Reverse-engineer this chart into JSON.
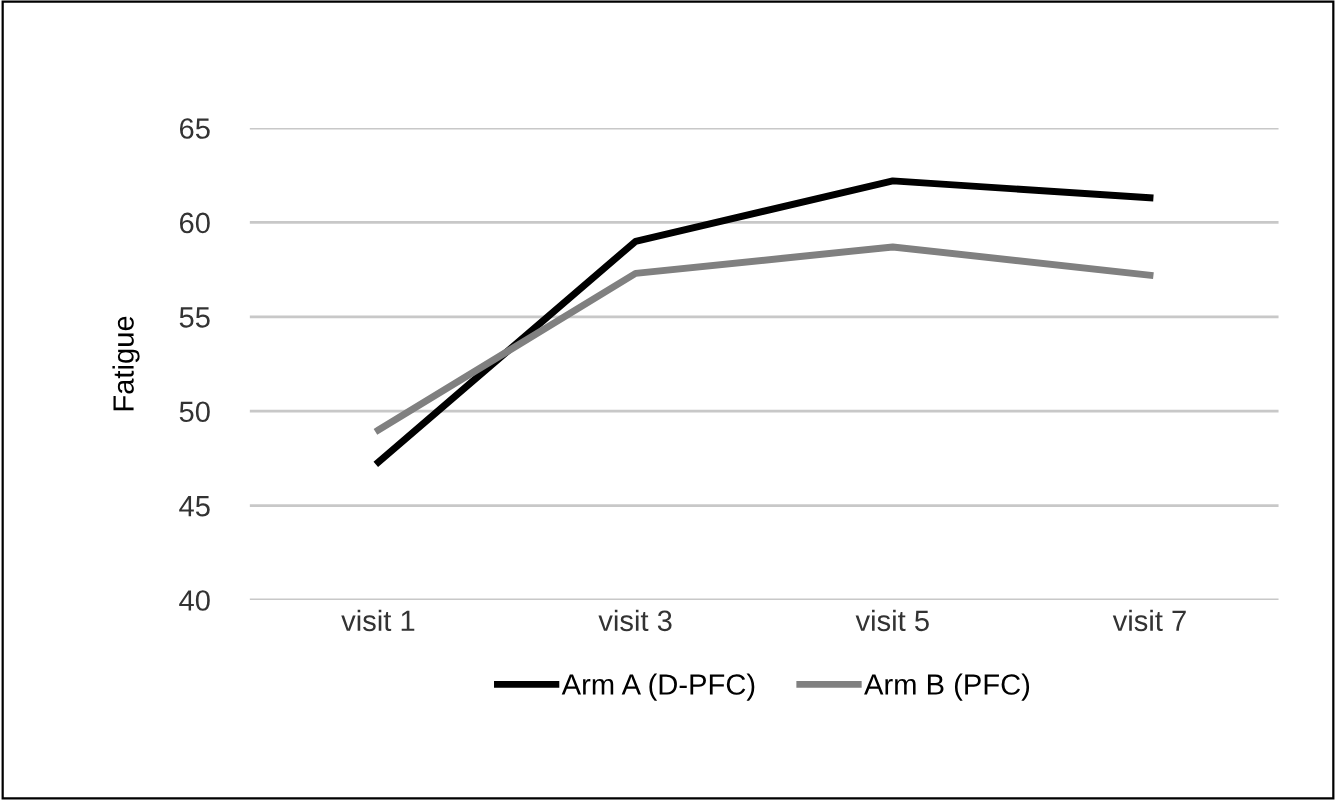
{
  "chart_data": {
    "type": "line",
    "ylabel": "Fatigue",
    "categories": [
      "visit 1",
      "visit 3",
      "visit 5",
      "visit 7"
    ],
    "series": [
      {
        "name": "Arm A (D-PFC)",
        "color": "#000000",
        "values": [
          47.3,
          59.0,
          62.2,
          61.3
        ]
      },
      {
        "name": "Arm B (PFC)",
        "color": "#808080",
        "values": [
          49.0,
          57.3,
          58.7,
          57.2
        ]
      }
    ],
    "ylim": [
      40,
      65
    ],
    "yticks": [
      40,
      45,
      50,
      55,
      60,
      65
    ],
    "grid": "y",
    "legend": "bottom",
    "marker": "none",
    "line_style": "solid"
  }
}
